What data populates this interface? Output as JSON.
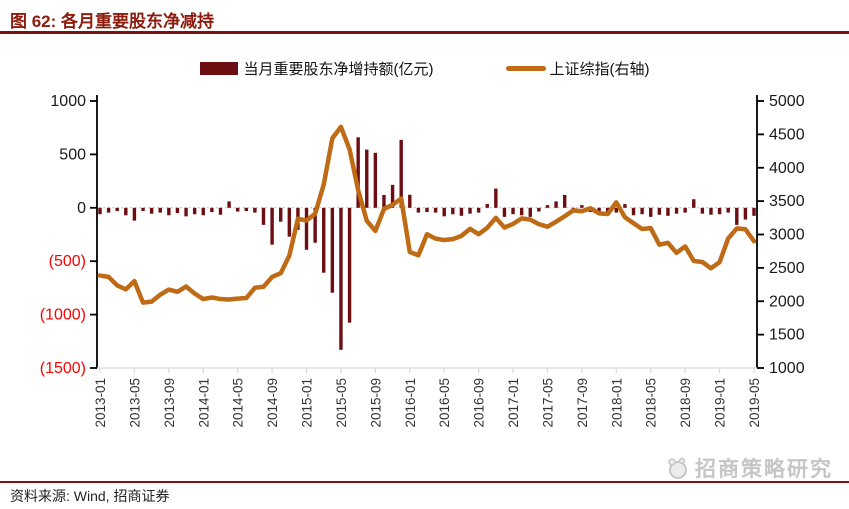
{
  "header": {
    "title": "图 62: 各月重要股东净减持"
  },
  "legend": {
    "bar_label": "当月重要股东净增持额(亿元)",
    "line_label": "上证综指(右轴)"
  },
  "footer": {
    "source": "资料来源: Wind, 招商证券"
  },
  "watermark": {
    "text": "招商策略研究",
    "logo": "cms-mascot-icon"
  },
  "colors": {
    "accent_red": "#7e1210",
    "title_red": "#8b1c0e",
    "bar": "#6d0e12",
    "line": "#bf6b16",
    "negative_tick": "#ff0000",
    "tick_text": "#1a1a1a",
    "grid_dotted": "#b0b0b0",
    "bottom_axis": "#d9d9d9",
    "watermark_gray": "#c6c6c6"
  },
  "chart_data": {
    "type": "bar+line combo, dual axis",
    "x_tick_every": 4,
    "x": [
      "2013-01",
      "2013-02",
      "2013-03",
      "2013-04",
      "2013-05",
      "2013-06",
      "2013-07",
      "2013-08",
      "2013-09",
      "2013-10",
      "2013-11",
      "2013-12",
      "2014-01",
      "2014-02",
      "2014-03",
      "2014-04",
      "2014-05",
      "2014-06",
      "2014-07",
      "2014-08",
      "2014-09",
      "2014-10",
      "2014-11",
      "2014-12",
      "2015-01",
      "2015-02",
      "2015-03",
      "2015-04",
      "2015-05",
      "2015-06",
      "2015-07",
      "2015-08",
      "2015-09",
      "2015-10",
      "2015-11",
      "2015-12",
      "2016-01",
      "2016-02",
      "2016-03",
      "2016-04",
      "2016-05",
      "2016-06",
      "2016-07",
      "2016-08",
      "2016-09",
      "2016-10",
      "2016-11",
      "2016-12",
      "2017-01",
      "2017-02",
      "2017-03",
      "2017-04",
      "2017-05",
      "2017-06",
      "2017-07",
      "2017-08",
      "2017-09",
      "2017-10",
      "2017-11",
      "2017-12",
      "2018-01",
      "2018-02",
      "2018-03",
      "2018-04",
      "2018-05",
      "2018-06",
      "2018-07",
      "2018-08",
      "2018-09",
      "2018-10",
      "2018-11",
      "2018-12",
      "2019-01",
      "2019-02",
      "2019-03",
      "2019-04",
      "2019-05"
    ],
    "series": [
      {
        "name": "当月重要股东净增持额(亿元)",
        "type": "bar",
        "axis": "left",
        "values": [
          -60,
          -45,
          -30,
          -70,
          -120,
          -30,
          -55,
          -45,
          -70,
          -50,
          -80,
          -60,
          -70,
          -40,
          -65,
          60,
          -35,
          -30,
          -45,
          -160,
          -345,
          -130,
          -270,
          -206,
          -393,
          -327,
          -608,
          -795,
          -1330,
          -1075,
          660,
          545,
          515,
          120,
          215,
          636,
          122,
          -45,
          -40,
          -45,
          -80,
          -60,
          -75,
          -55,
          -45,
          35,
          180,
          -85,
          -60,
          -70,
          -85,
          -35,
          25,
          60,
          120,
          -35,
          25,
          -40,
          -60,
          -55,
          -45,
          35,
          -70,
          -60,
          -85,
          -65,
          -75,
          -55,
          -45,
          80,
          -55,
          -65,
          -60,
          -45,
          -160,
          -110,
          -75
        ]
      },
      {
        "name": "上证综指(右轴)",
        "type": "line",
        "axis": "right",
        "values": [
          2385,
          2365,
          2237,
          2178,
          2301,
          1979,
          1994,
          2098,
          2175,
          2141,
          2221,
          2116,
          2033,
          2056,
          2033,
          2026,
          2039,
          2048,
          2202,
          2217,
          2364,
          2420,
          2683,
          3235,
          3210,
          3310,
          3748,
          4442,
          4612,
          4277,
          3664,
          3206,
          3053,
          3383,
          3445,
          3539,
          2738,
          2688,
          3004,
          2938,
          2917,
          2930,
          2979,
          3085,
          3005,
          3100,
          3250,
          3104,
          3159,
          3242,
          3223,
          3155,
          3117,
          3192,
          3273,
          3361,
          3349,
          3393,
          3317,
          3307,
          3481,
          3259,
          3169,
          3082,
          3095,
          2847,
          2876,
          2725,
          2821,
          2603,
          2588,
          2494,
          2585,
          2941,
          3091,
          3078,
          2899
        ]
      }
    ],
    "left_axis": {
      "min": -1500,
      "max": 1000,
      "tick_values": [
        1000,
        500,
        0,
        -500,
        -1000,
        -1500
      ],
      "tick_labels": [
        "1000",
        "500",
        "0",
        "(500)",
        "(1000)",
        "(1500)"
      ]
    },
    "right_axis": {
      "min": 1000,
      "max": 5000,
      "tick_values": [
        5000,
        4500,
        4000,
        3500,
        3000,
        2500,
        2000,
        1500,
        1000
      ],
      "tick_labels": [
        "5000",
        "4500",
        "4000",
        "3500",
        "3000",
        "2500",
        "2000",
        "1500",
        "1000"
      ]
    },
    "grid": "dotted zero line only",
    "legend_position": "top center"
  }
}
